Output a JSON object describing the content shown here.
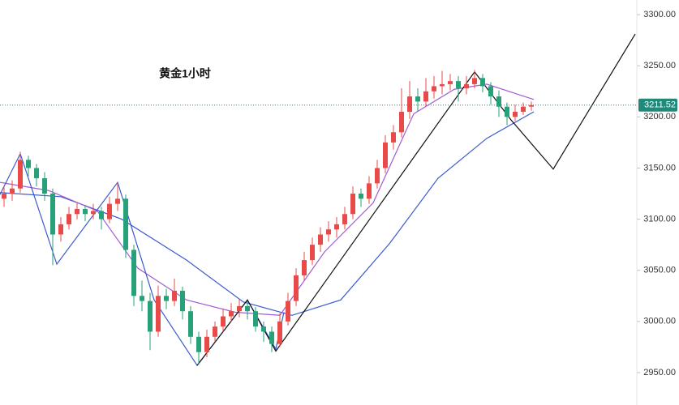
{
  "chart_data": {
    "type": "candlestick",
    "title": "黄金1小时",
    "up_color": "#e84a4a",
    "down_color": "#26a17a",
    "xlim": [
      -0.5,
      78
    ],
    "ylim": [
      2918.3,
      3314.3
    ],
    "yticks": [
      {
        "value": 3300,
        "label": "3300.00"
      },
      {
        "value": 3250,
        "label": "3250.00"
      },
      {
        "value": 3200,
        "label": "3200.00"
      },
      {
        "value": 3150,
        "label": "3150.00"
      },
      {
        "value": 3100,
        "label": "3100.00"
      },
      {
        "value": 3050,
        "label": "3050.00"
      },
      {
        "value": 3000,
        "label": "3000.00"
      },
      {
        "value": 2950,
        "label": "2950.00"
      }
    ],
    "last_price": 3211.52,
    "last_price_color": "#1f8a7a",
    "candles": [
      [
        3120,
        3132,
        3112,
        3125
      ],
      [
        3125,
        3138,
        3118,
        3130
      ],
      [
        3130,
        3166,
        3126,
        3158
      ],
      [
        3158,
        3162,
        3142,
        3150
      ],
      [
        3150,
        3154,
        3132,
        3140
      ],
      [
        3140,
        3146,
        3118,
        3125
      ],
      [
        3125,
        3130,
        3055,
        3085
      ],
      [
        3085,
        3102,
        3078,
        3095
      ],
      [
        3095,
        3112,
        3090,
        3105
      ],
      [
        3105,
        3116,
        3100,
        3110
      ],
      [
        3110,
        3114,
        3098,
        3105
      ],
      [
        3105,
        3115,
        3100,
        3108
      ],
      [
        3108,
        3112,
        3090,
        3100
      ],
      [
        3100,
        3122,
        3096,
        3115
      ],
      [
        3115,
        3136,
        3108,
        3120
      ],
      [
        3120,
        3124,
        3062,
        3070
      ],
      [
        3070,
        3075,
        3015,
        3025
      ],
      [
        3025,
        3040,
        3010,
        3020
      ],
      [
        3020,
        3028,
        2972,
        2990
      ],
      [
        2990,
        3035,
        2985,
        3025
      ],
      [
        3025,
        3032,
        3012,
        3020
      ],
      [
        3020,
        3042,
        3015,
        3030
      ],
      [
        3030,
        3034,
        3002,
        3010
      ],
      [
        3010,
        3015,
        2978,
        2985
      ],
      [
        2985,
        2990,
        2958,
        2970
      ],
      [
        2970,
        2992,
        2965,
        2985
      ],
      [
        2985,
        3000,
        2980,
        2995
      ],
      [
        2995,
        3012,
        2990,
        3005
      ],
      [
        3005,
        3018,
        3000,
        3010
      ],
      [
        3010,
        3022,
        3004,
        3015
      ],
      [
        3015,
        3020,
        3002,
        3010
      ],
      [
        3010,
        3014,
        2990,
        2995
      ],
      [
        2995,
        3000,
        2980,
        2990
      ],
      [
        2990,
        2995,
        2970,
        2978
      ],
      [
        2978,
        3008,
        2975,
        3000
      ],
      [
        3000,
        3028,
        2996,
        3020
      ],
      [
        3020,
        3052,
        3015,
        3045
      ],
      [
        3045,
        3068,
        3040,
        3060
      ],
      [
        3060,
        3082,
        3055,
        3075
      ],
      [
        3075,
        3092,
        3068,
        3085
      ],
      [
        3085,
        3098,
        3078,
        3090
      ],
      [
        3090,
        3102,
        3082,
        3095
      ],
      [
        3095,
        3112,
        3090,
        3105
      ],
      [
        3105,
        3132,
        3100,
        3125
      ],
      [
        3125,
        3130,
        3112,
        3120
      ],
      [
        3120,
        3142,
        3115,
        3135
      ],
      [
        3135,
        3158,
        3130,
        3150
      ],
      [
        3150,
        3182,
        3145,
        3175
      ],
      [
        3175,
        3192,
        3168,
        3185
      ],
      [
        3185,
        3228,
        3180,
        3205
      ],
      [
        3205,
        3235,
        3198,
        3220
      ],
      [
        3220,
        3228,
        3205,
        3215
      ],
      [
        3215,
        3238,
        3210,
        3225
      ],
      [
        3225,
        3240,
        3218,
        3230
      ],
      [
        3230,
        3245,
        3222,
        3232
      ],
      [
        3232,
        3242,
        3226,
        3235
      ],
      [
        3235,
        3240,
        3215,
        3228
      ],
      [
        3228,
        3240,
        3222,
        3232
      ],
      [
        3232,
        3246,
        3228,
        3238
      ],
      [
        3238,
        3242,
        3224,
        3230
      ],
      [
        3230,
        3234,
        3212,
        3220
      ],
      [
        3220,
        3226,
        3200,
        3210
      ],
      [
        3210,
        3214,
        3192,
        3200
      ],
      [
        3200,
        3212,
        3196,
        3205
      ],
      [
        3205,
        3214,
        3202,
        3210
      ],
      [
        3210,
        3215,
        3206,
        3211.52
      ]
    ],
    "lines": [
      {
        "color": "#3a5bd0",
        "x": [
          -0.5,
          7,
          14.5,
          22.5,
          29.5,
          35.5,
          41.5,
          47.5,
          53.5,
          59.5,
          65.3
        ],
        "values": [
          3126,
          3122,
          3100,
          3060,
          3019,
          3006,
          3021,
          3076,
          3140,
          3179,
          3205
        ]
      },
      {
        "color": "#a35bd0",
        "x": [
          -0.5,
          5.5,
          11.5,
          16.5,
          22.5,
          28.5,
          34,
          39.5,
          45.5,
          50.5,
          55.5,
          59.5,
          65.3
        ],
        "values": [
          3136,
          3128,
          3108,
          3052,
          3021,
          3009,
          3006,
          3068,
          3116,
          3203,
          3227,
          3232,
          3217
        ]
      },
      {
        "color": "#3a5bd0",
        "x": [
          -0.5,
          2,
          6.5,
          14,
          18.5,
          23.8,
          30,
          33.5,
          34.5
        ],
        "values": [
          3124,
          3164,
          3056,
          3136,
          3021,
          2957,
          3021,
          2973,
          3009
        ]
      },
      {
        "color": "#111111",
        "x": [
          23.8,
          30,
          33.5,
          58,
          62.5,
          67.7,
          77.8
        ],
        "values": [
          2957,
          3021,
          2971,
          3244,
          3197,
          3149,
          3281
        ]
      }
    ]
  }
}
